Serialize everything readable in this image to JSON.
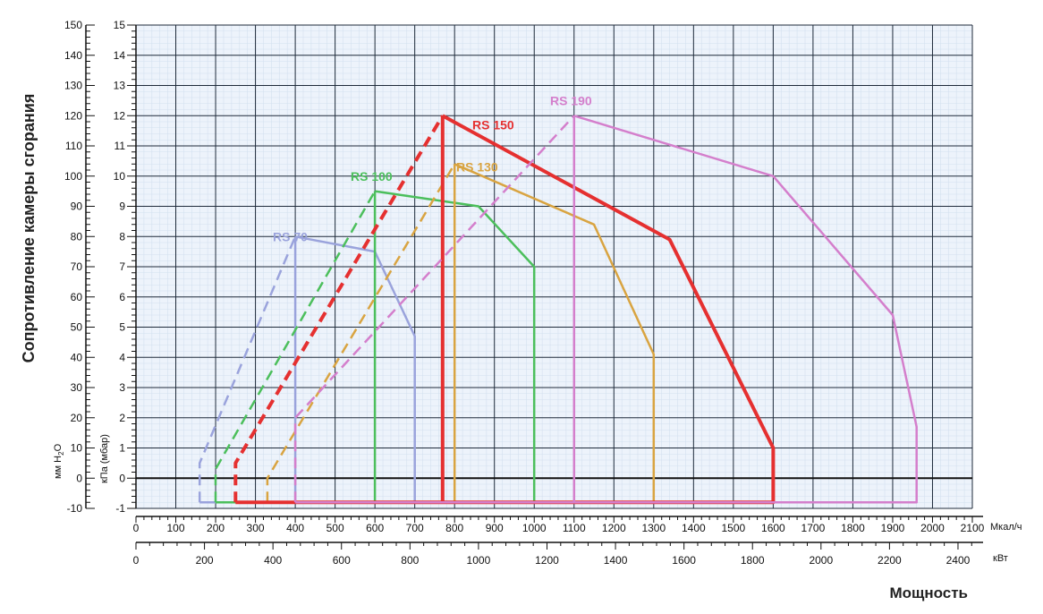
{
  "chart_data": {
    "type": "line",
    "title": "",
    "ylabel": "Сопротивление камеры сгорания",
    "xlabel": "Мощность",
    "y_unit_mm": "мм H",
    "y_unit_mm_sub": "2",
    "y_unit_mm_end": "O",
    "y_unit_kpa": "кПа (мбар)",
    "x_unit_mcal": "Мкал/ч",
    "x_unit_kw": "кВт",
    "x_range_mcal": [
      0,
      2100
    ],
    "y_range_mm": [
      -10,
      150
    ],
    "x_ticks_mcal": [
      "0",
      "100",
      "200",
      "300",
      "400",
      "500",
      "600",
      "700",
      "800",
      "900",
      "1000",
      "1100",
      "1200",
      "1300",
      "1400",
      "1500",
      "1600",
      "1700",
      "1800",
      "1900",
      "2000",
      "2100"
    ],
    "x_ticks_kw": [
      "0",
      "200",
      "400",
      "600",
      "800",
      "1000",
      "1200",
      "1400",
      "1600",
      "1800",
      "2000",
      "2200",
      "2400"
    ],
    "y_ticks_mm": [
      "150",
      "140",
      "130",
      "120",
      "110",
      "100",
      "90",
      "80",
      "70",
      "60",
      "50",
      "40",
      "30",
      "20",
      "10",
      "0",
      "-10"
    ],
    "y_ticks_mbar": [
      "15",
      "14",
      "13",
      "12",
      "11",
      "10",
      "9",
      "8",
      "7",
      "6",
      "5",
      "4",
      "3",
      "2",
      "1",
      "0",
      "-1"
    ],
    "grid": true,
    "series": [
      {
        "name": "RS 70",
        "color": "#9aa3dc",
        "dashed": [
          [
            160,
            -8
          ],
          [
            160,
            5
          ],
          [
            400,
            80
          ]
        ],
        "solid": [
          [
            400,
            80
          ],
          [
            600,
            75
          ],
          [
            700,
            47
          ],
          [
            700,
            -8
          ],
          [
            160,
            -8
          ]
        ],
        "vertical_dashed": [
          [
            400,
            -8
          ],
          [
            400,
            80
          ]
        ]
      },
      {
        "name": "RS 100",
        "color": "#4cbf5c",
        "dashed": [
          [
            200,
            -8
          ],
          [
            200,
            3
          ],
          [
            600,
            95
          ]
        ],
        "solid": [
          [
            600,
            95
          ],
          [
            860,
            90
          ],
          [
            1000,
            70
          ],
          [
            1000,
            -8
          ],
          [
            200,
            -8
          ]
        ],
        "vertical_dashed": [
          [
            600,
            -8
          ],
          [
            600,
            95
          ]
        ]
      },
      {
        "name": "RS 130",
        "color": "#d9a441",
        "dashed": [
          [
            330,
            -8
          ],
          [
            330,
            0
          ],
          [
            800,
            104
          ]
        ],
        "solid": [
          [
            800,
            104
          ],
          [
            1150,
            84
          ],
          [
            1300,
            41
          ],
          [
            1300,
            -8
          ],
          [
            330,
            -8
          ]
        ],
        "vertical_dashed": [
          [
            800,
            -8
          ],
          [
            800,
            104
          ]
        ]
      },
      {
        "name": "RS 150",
        "color": "#e53030",
        "dashed": [
          [
            250,
            -8
          ],
          [
            250,
            5
          ],
          [
            770,
            120
          ]
        ],
        "solid": [
          [
            770,
            120
          ],
          [
            1340,
            79
          ],
          [
            1600,
            10
          ],
          [
            1600,
            -8
          ],
          [
            250,
            -8
          ]
        ],
        "vertical_dashed": [
          [
            770,
            -8
          ],
          [
            770,
            120
          ]
        ]
      },
      {
        "name": "RS 190",
        "color": "#d47fcc",
        "dashed": [
          [
            400,
            -8
          ],
          [
            400,
            20
          ],
          [
            1100,
            120
          ]
        ],
        "solid": [
          [
            1100,
            120
          ],
          [
            1600,
            100
          ],
          [
            1900,
            54
          ],
          [
            1960,
            17
          ],
          [
            1960,
            -8
          ],
          [
            400,
            -8
          ]
        ],
        "vertical_dashed": [
          [
            1100,
            -8
          ],
          [
            1100,
            120
          ]
        ]
      }
    ]
  }
}
